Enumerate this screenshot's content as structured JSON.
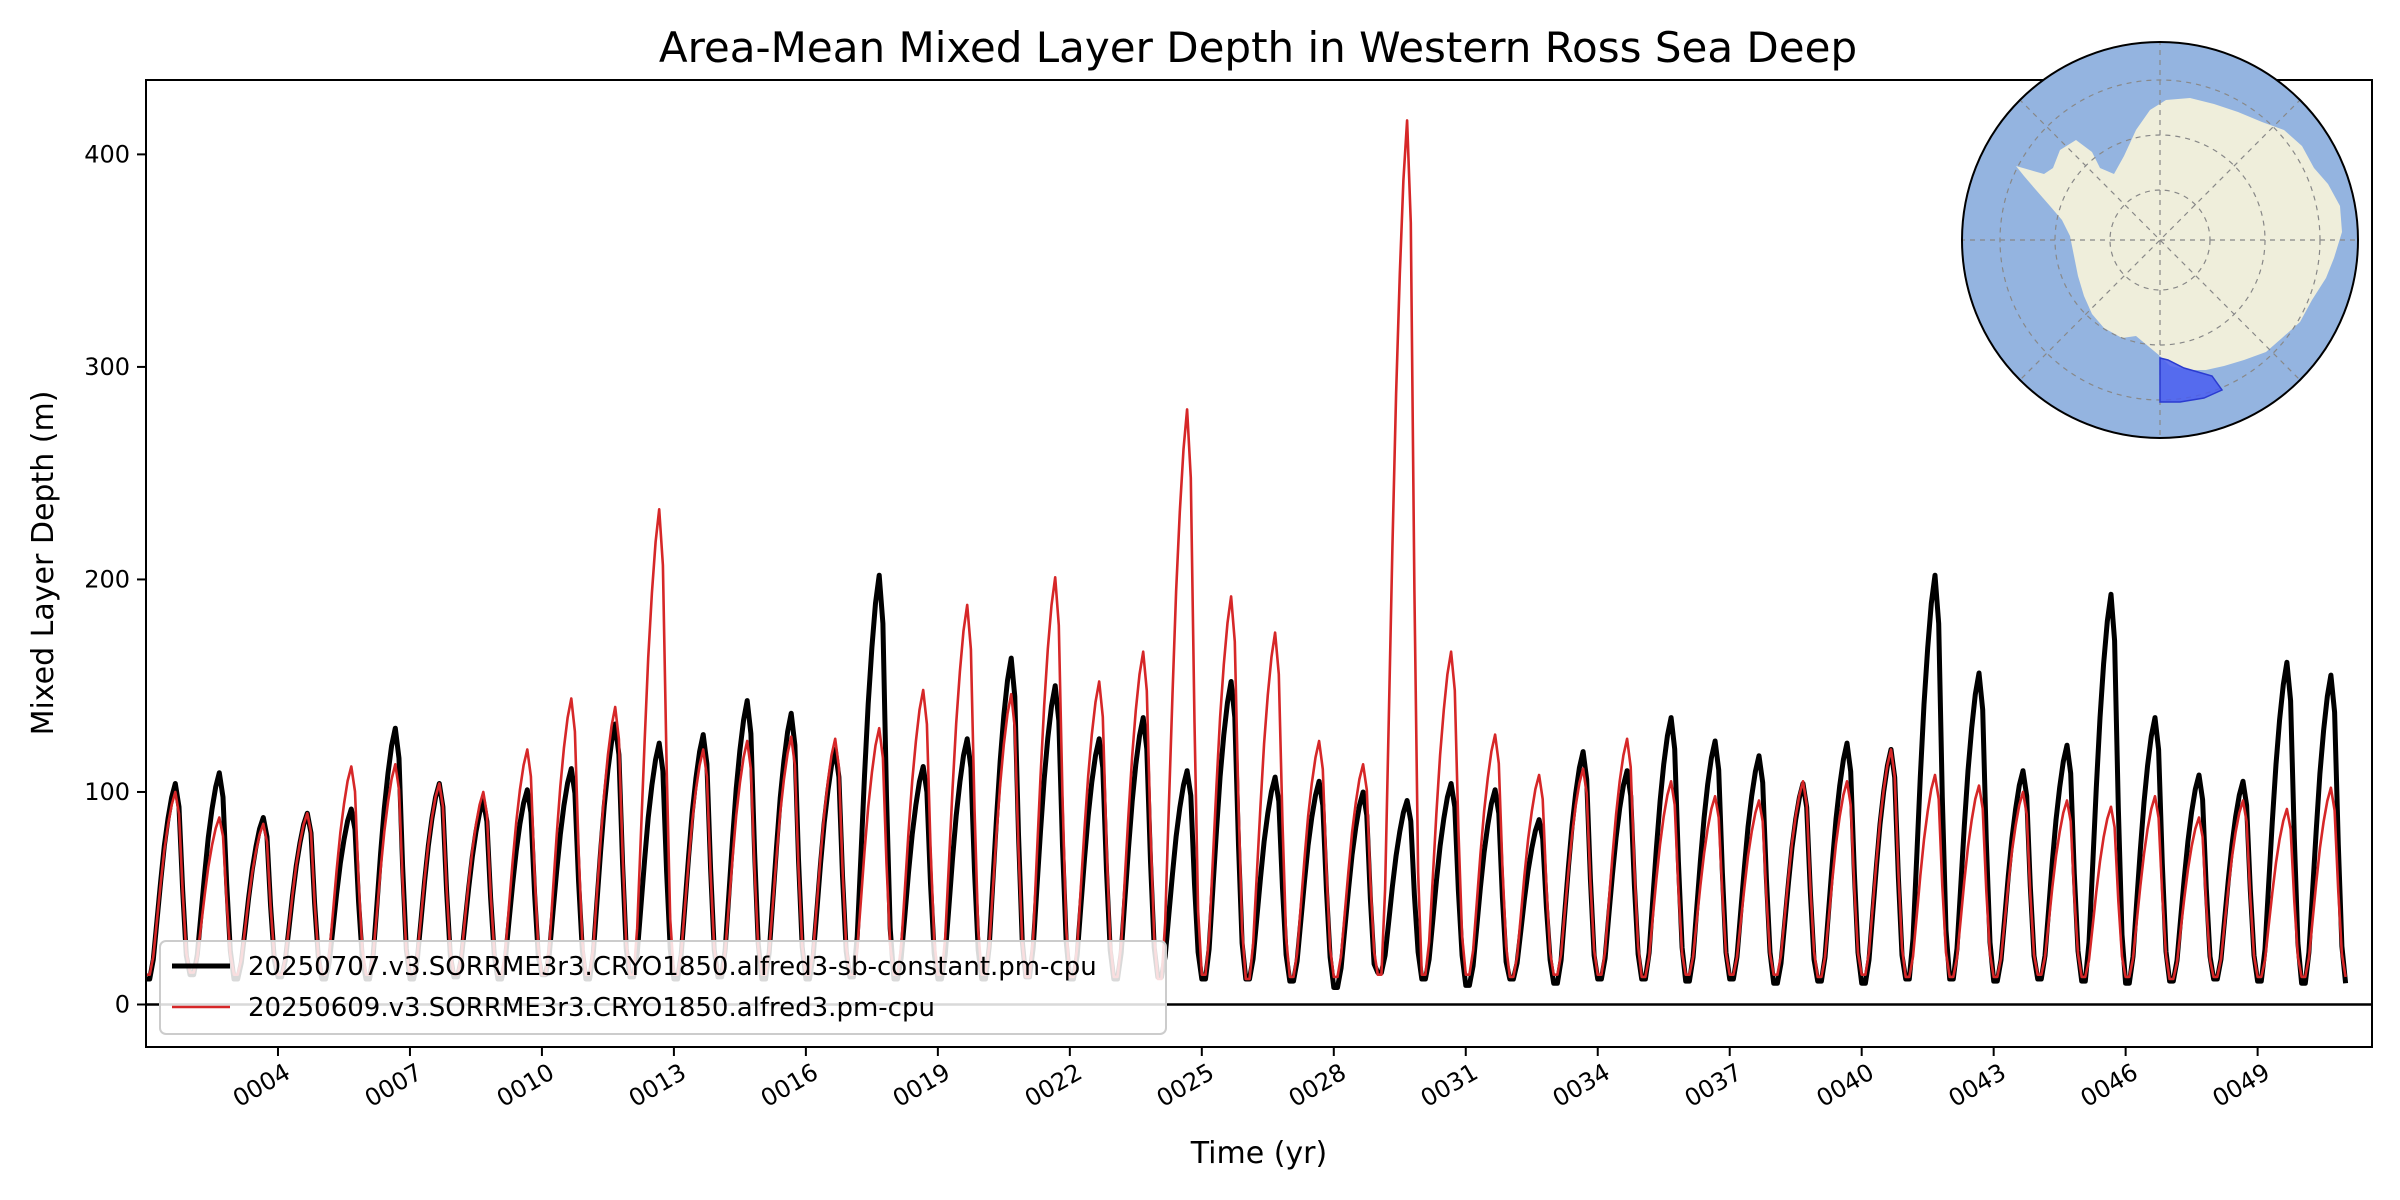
{
  "chart_data": {
    "type": "line",
    "title": "Area-Mean Mixed Layer Depth in Western Ross Sea Deep",
    "xlabel": "Time (yr)",
    "ylabel": "Mixed Layer Depth (m)",
    "xlim": [
      1.0,
      51.6
    ],
    "ylim": [
      -20,
      435
    ],
    "x_ticks": [
      4,
      7,
      10,
      13,
      16,
      19,
      22,
      25,
      28,
      31,
      34,
      37,
      40,
      43,
      46,
      49
    ],
    "x_tick_labels": [
      "0004",
      "0007",
      "0010",
      "0013",
      "0016",
      "0019",
      "0022",
      "0025",
      "0028",
      "0031",
      "0034",
      "0037",
      "0040",
      "0043",
      "0046",
      "0049"
    ],
    "y_ticks": [
      0,
      100,
      200,
      300,
      400
    ],
    "y_tick_labels": [
      "0",
      "100",
      "200",
      "300",
      "400"
    ],
    "grid": false,
    "legend_placement": "lower-left",
    "series": [
      {
        "name": "20250707.v3.SORRME3r3.CRYO1850.alfred3-sb-constant.pm-cpu",
        "color": "#000000",
        "annual_peaks": [
          104,
          109,
          88,
          90,
          92,
          130,
          104,
          96,
          101,
          111,
          132,
          123,
          127,
          143,
          137,
          120,
          202,
          112,
          125,
          163,
          150,
          125,
          135,
          110,
          152,
          107,
          105,
          100,
          96,
          104,
          101,
          87,
          119,
          110,
          135,
          124,
          117,
          104,
          123,
          120,
          202,
          156,
          110,
          122,
          193,
          135,
          108,
          105,
          161,
          155
        ],
        "annual_minima": [
          12,
          14,
          12,
          13,
          12,
          12,
          12,
          13,
          12,
          14,
          12,
          13,
          12,
          13,
          12,
          12,
          13,
          12,
          12,
          12,
          13,
          12,
          12,
          13,
          12,
          12,
          11,
          8,
          15,
          12,
          9,
          12,
          10,
          12,
          12,
          11,
          12,
          10,
          11,
          10,
          12,
          12,
          11,
          12,
          11,
          10,
          11,
          12,
          11,
          10
        ]
      },
      {
        "name": "20250609.v3.SORRME3r3.CRYO1850.alfred3.pm-cpu",
        "color": "#d62728",
        "annual_peaks": [
          100,
          88,
          85,
          90,
          112,
          113,
          104,
          100,
          120,
          144,
          140,
          233,
          120,
          124,
          126,
          125,
          130,
          148,
          188,
          146,
          201,
          152,
          166,
          280,
          192,
          175,
          124,
          113,
          416,
          166,
          127,
          108,
          111,
          125,
          105,
          98,
          96,
          105,
          105,
          120,
          108,
          103,
          100,
          96,
          93,
          98,
          88,
          96,
          92,
          102
        ],
        "annual_minima": [
          14,
          15,
          14,
          14,
          14,
          14,
          14,
          14,
          14,
          14,
          14,
          14,
          14,
          14,
          14,
          14,
          14,
          14,
          14,
          14,
          13,
          13,
          13,
          12,
          14,
          12,
          13,
          13,
          14,
          14,
          14,
          13,
          14,
          14,
          13,
          14,
          14,
          14,
          13,
          14,
          13,
          13,
          13,
          14,
          13,
          13,
          12,
          13,
          13,
          13
        ]
      }
    ],
    "inset_map": {
      "type": "south-polar-stereographic",
      "ocean_color": "#94b4e0",
      "land_color": "#efeedb",
      "region_color": "#4a5ef0"
    }
  }
}
